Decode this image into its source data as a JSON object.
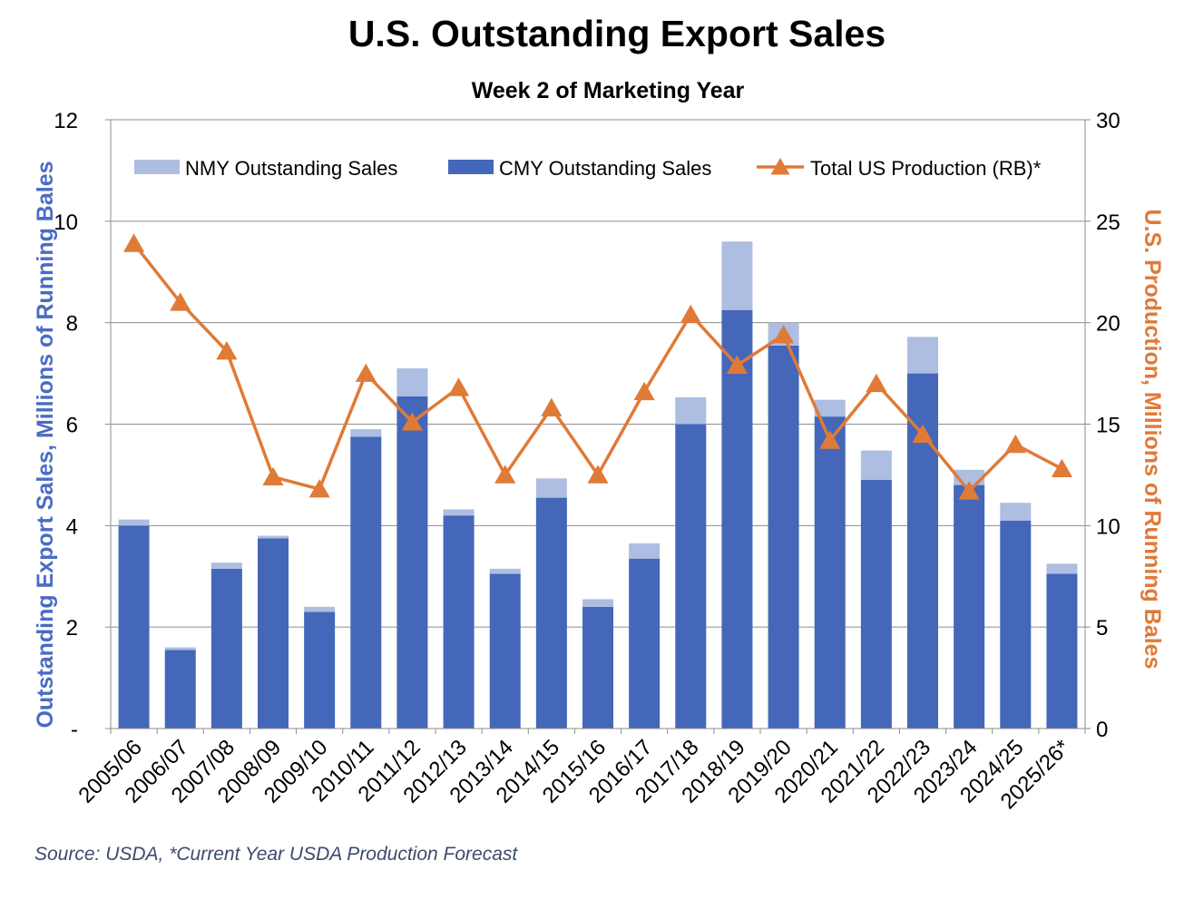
{
  "chart_data": {
    "type": "bar",
    "title": "U.S. Outstanding Export Sales",
    "subtitle": "Week 2 of Marketing Year",
    "categories": [
      "2005/06",
      "2006/07",
      "2007/08",
      "2008/09",
      "2009/10",
      "2010/11",
      "2011/12",
      "2012/13",
      "2013/14",
      "2014/15",
      "2015/16",
      "2016/17",
      "2017/18",
      "2018/19",
      "2019/20",
      "2020/21",
      "2021/22",
      "2022/23",
      "2023/24",
      "2024/25",
      "2025/26*"
    ],
    "series": [
      {
        "name": "CMY Outstanding Sales",
        "kind": "bar",
        "axis": "left",
        "color": "#4467b9",
        "values": [
          4.0,
          1.55,
          3.15,
          3.75,
          2.3,
          5.75,
          6.55,
          4.2,
          3.05,
          4.55,
          2.4,
          3.35,
          6.0,
          8.25,
          7.55,
          6.15,
          4.9,
          7.0,
          4.8,
          4.1,
          3.05
        ]
      },
      {
        "name": "NMY Outstanding Sales",
        "kind": "bar",
        "axis": "left",
        "color": "#aebde2",
        "values": [
          0.12,
          0.05,
          0.12,
          0.05,
          0.1,
          0.15,
          0.55,
          0.12,
          0.1,
          0.38,
          0.15,
          0.3,
          0.53,
          1.35,
          0.45,
          0.33,
          0.58,
          0.72,
          0.3,
          0.35,
          0.2
        ]
      },
      {
        "name": "Total US Production (RB)*",
        "kind": "line",
        "axis": "right",
        "color": "#e07a37",
        "values": [
          23.9,
          21.0,
          18.6,
          12.4,
          11.8,
          17.5,
          15.1,
          16.8,
          12.5,
          15.8,
          12.5,
          16.6,
          20.4,
          17.9,
          19.4,
          14.2,
          17.0,
          14.5,
          11.7,
          14.0,
          12.8
        ]
      }
    ],
    "legend": [
      "NMY Outstanding Sales",
      "CMY Outstanding Sales",
      "Total US Production (RB)*"
    ],
    "legend_position": "top",
    "ylabel": "Outstanding Export Sales, Millions of Running Bales",
    "ylabel_right": "U.S. Production, Millions of Running Bales",
    "ylim": [
      0,
      12
    ],
    "ylim_right": [
      0,
      30
    ],
    "yticks": [
      "-",
      "2",
      "4",
      "6",
      "8",
      "10",
      "12"
    ],
    "yticks_right": [
      "0",
      "5",
      "10",
      "15",
      "20",
      "25",
      "30"
    ],
    "grid": "horizontal"
  },
  "source": "Source: USDA, *Current Year USDA Production Forecast"
}
